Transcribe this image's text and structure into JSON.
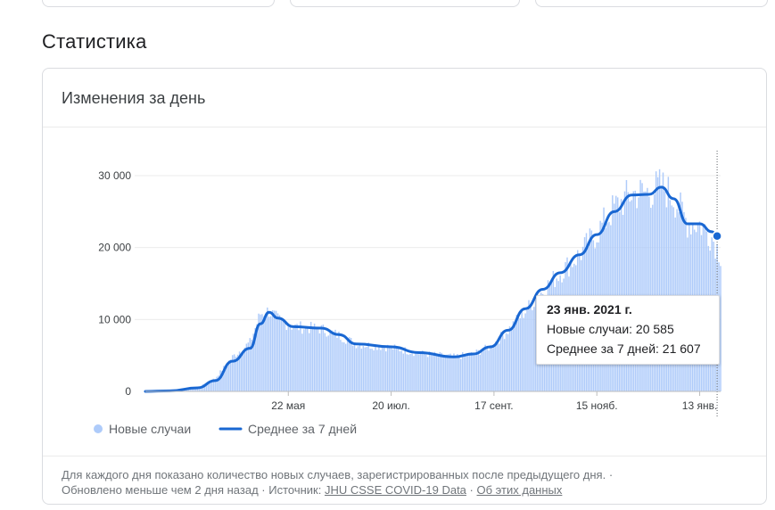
{
  "section_title": "Статистика",
  "card_title": "Изменения за день",
  "tooltip": {
    "date": "23 янв. 2021 г.",
    "new_cases": "Новые случаи: 20 585",
    "avg": "Среднее за 7 дней: 21 607"
  },
  "footer": {
    "line1": "Для каждого дня показано количество новых случаев, зарегистрированных после предыдущего дня.",
    "dot": "·",
    "updated": "Обновлено меньше чем 2 дня назад",
    "source_label": "Источник:",
    "source_link": "JHU CSSE COVID-19 Data",
    "about_link": "Об этих данных"
  },
  "colors": {
    "bar": "#aecbfa",
    "line": "#1967d2",
    "grid": "#ebebeb",
    "axis": "#bdbdbd"
  },
  "chart_data": {
    "type": "bar",
    "ylim": [
      0,
      30000
    ],
    "yticks": [
      {
        "value": 0,
        "label": "0"
      },
      {
        "value": 10000,
        "label": "10 000"
      },
      {
        "value": 20000,
        "label": "20 000"
      },
      {
        "value": 30000,
        "label": "30 000"
      }
    ],
    "xrange": [
      "2020-03-01",
      "2021-01-25"
    ],
    "xticks": [
      {
        "date": "2020-05-22",
        "label": "22 мая"
      },
      {
        "date": "2020-07-20",
        "label": "20 июл."
      },
      {
        "date": "2020-09-17",
        "label": "17 сент."
      },
      {
        "date": "2020-11-15",
        "label": "15 нояб."
      },
      {
        "date": "2021-01-13",
        "label": "13 янв."
      }
    ],
    "series": [
      {
        "name": "Новые случаи",
        "type": "bar",
        "anchors": [
          {
            "date": "2020-03-01",
            "value": 0
          },
          {
            "date": "2020-03-15",
            "value": 50
          },
          {
            "date": "2020-03-31",
            "value": 500
          },
          {
            "date": "2020-04-10",
            "value": 1800
          },
          {
            "date": "2020-04-20",
            "value": 4800
          },
          {
            "date": "2020-04-30",
            "value": 6800
          },
          {
            "date": "2020-05-06",
            "value": 10800
          },
          {
            "date": "2020-05-11",
            "value": 11200
          },
          {
            "date": "2020-05-16",
            "value": 10000
          },
          {
            "date": "2020-05-25",
            "value": 9000
          },
          {
            "date": "2020-06-10",
            "value": 8700
          },
          {
            "date": "2020-06-20",
            "value": 7800
          },
          {
            "date": "2020-06-30",
            "value": 6600
          },
          {
            "date": "2020-07-20",
            "value": 6100
          },
          {
            "date": "2020-08-05",
            "value": 5300
          },
          {
            "date": "2020-08-25",
            "value": 4800
          },
          {
            "date": "2020-09-05",
            "value": 5200
          },
          {
            "date": "2020-09-15",
            "value": 6200
          },
          {
            "date": "2020-09-25",
            "value": 8500
          },
          {
            "date": "2020-10-05",
            "value": 11200
          },
          {
            "date": "2020-10-15",
            "value": 14000
          },
          {
            "date": "2020-10-25",
            "value": 16500
          },
          {
            "date": "2020-11-05",
            "value": 19000
          },
          {
            "date": "2020-11-15",
            "value": 22000
          },
          {
            "date": "2020-11-25",
            "value": 25500
          },
          {
            "date": "2020-12-05",
            "value": 27500
          },
          {
            "date": "2020-12-15",
            "value": 27700
          },
          {
            "date": "2020-12-22",
            "value": 28600
          },
          {
            "date": "2020-12-29",
            "value": 27000
          },
          {
            "date": "2021-01-06",
            "value": 23500
          },
          {
            "date": "2021-01-13",
            "value": 23300
          },
          {
            "date": "2021-01-20",
            "value": 21500
          },
          {
            "date": "2021-01-25",
            "value": 19000
          }
        ]
      },
      {
        "name": "Среднее за 7 дней",
        "type": "line",
        "values": [
          {
            "date": "2020-03-01",
            "value": 0
          },
          {
            "date": "2020-03-15",
            "value": 80
          },
          {
            "date": "2020-03-31",
            "value": 500
          },
          {
            "date": "2020-04-10",
            "value": 1500
          },
          {
            "date": "2020-04-20",
            "value": 4200
          },
          {
            "date": "2020-04-30",
            "value": 6000
          },
          {
            "date": "2020-05-06",
            "value": 9400
          },
          {
            "date": "2020-05-11",
            "value": 11000
          },
          {
            "date": "2020-05-16",
            "value": 10200
          },
          {
            "date": "2020-05-25",
            "value": 9000
          },
          {
            "date": "2020-06-10",
            "value": 8800
          },
          {
            "date": "2020-06-20",
            "value": 7900
          },
          {
            "date": "2020-06-30",
            "value": 6600
          },
          {
            "date": "2020-07-20",
            "value": 6200
          },
          {
            "date": "2020-08-05",
            "value": 5400
          },
          {
            "date": "2020-08-25",
            "value": 4800
          },
          {
            "date": "2020-09-05",
            "value": 5200
          },
          {
            "date": "2020-09-15",
            "value": 6200
          },
          {
            "date": "2020-09-25",
            "value": 8500
          },
          {
            "date": "2020-10-05",
            "value": 11500
          },
          {
            "date": "2020-10-15",
            "value": 14200
          },
          {
            "date": "2020-10-25",
            "value": 16500
          },
          {
            "date": "2020-11-05",
            "value": 19000
          },
          {
            "date": "2020-11-15",
            "value": 21800
          },
          {
            "date": "2020-11-25",
            "value": 25000
          },
          {
            "date": "2020-12-05",
            "value": 27300
          },
          {
            "date": "2020-12-15",
            "value": 27400
          },
          {
            "date": "2020-12-22",
            "value": 28400
          },
          {
            "date": "2020-12-29",
            "value": 26800
          },
          {
            "date": "2021-01-06",
            "value": 23300
          },
          {
            "date": "2021-01-13",
            "value": 23300
          },
          {
            "date": "2021-01-20",
            "value": 22200
          },
          {
            "date": "2021-01-23",
            "value": 21607
          }
        ]
      }
    ],
    "highlight": {
      "date": "2021-01-23",
      "value": 21607
    }
  }
}
